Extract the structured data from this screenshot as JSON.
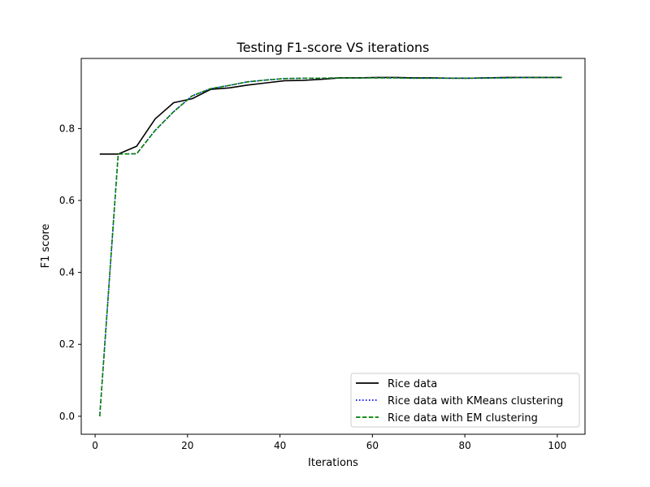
{
  "chart_data": {
    "type": "line",
    "title": "Testing F1-score VS iterations",
    "xlabel": "Iterations",
    "ylabel": "F1 score",
    "xlim": [
      -3,
      106
    ],
    "ylim": [
      -0.05,
      0.995
    ],
    "xticks": [
      0,
      20,
      40,
      60,
      80,
      100
    ],
    "yticks": [
      0.0,
      0.2,
      0.4,
      0.6,
      0.8
    ],
    "ytick_labels": [
      "0.0",
      "0.2",
      "0.4",
      "0.6",
      "0.8"
    ],
    "grid": false,
    "legend_position": "lower right",
    "x": [
      1,
      5,
      9,
      13,
      17,
      21,
      25,
      29,
      33,
      37,
      41,
      45,
      49,
      53,
      57,
      61,
      65,
      69,
      73,
      77,
      81,
      85,
      89,
      93,
      97,
      101
    ],
    "series": [
      {
        "name": "Rice data",
        "color": "#000000",
        "style": "solid",
        "values": [
          0.729,
          0.729,
          0.751,
          0.827,
          0.872,
          0.883,
          0.909,
          0.913,
          0.921,
          0.927,
          0.933,
          0.934,
          0.937,
          0.941,
          0.941,
          0.942,
          0.942,
          0.941,
          0.941,
          0.94,
          0.94,
          0.941,
          0.942,
          0.942,
          0.942,
          0.942
        ]
      },
      {
        "name": "Rice data with KMeans clustering",
        "color": "#0000ff",
        "style": "dotted",
        "values": [
          0.0,
          0.729,
          0.73,
          0.795,
          0.847,
          0.891,
          0.911,
          0.92,
          0.93,
          0.935,
          0.939,
          0.94,
          0.94,
          0.941,
          0.941,
          0.941,
          0.941,
          0.94,
          0.94,
          0.94,
          0.94,
          0.941,
          0.941,
          0.942,
          0.942,
          0.942
        ]
      },
      {
        "name": "Rice data with EM clustering",
        "color": "#008000",
        "style": "dashed",
        "values": [
          0.0,
          0.729,
          0.73,
          0.795,
          0.847,
          0.891,
          0.911,
          0.92,
          0.93,
          0.935,
          0.939,
          0.94,
          0.94,
          0.941,
          0.941,
          0.941,
          0.941,
          0.94,
          0.94,
          0.94,
          0.94,
          0.941,
          0.941,
          0.942,
          0.942,
          0.942
        ]
      }
    ]
  }
}
